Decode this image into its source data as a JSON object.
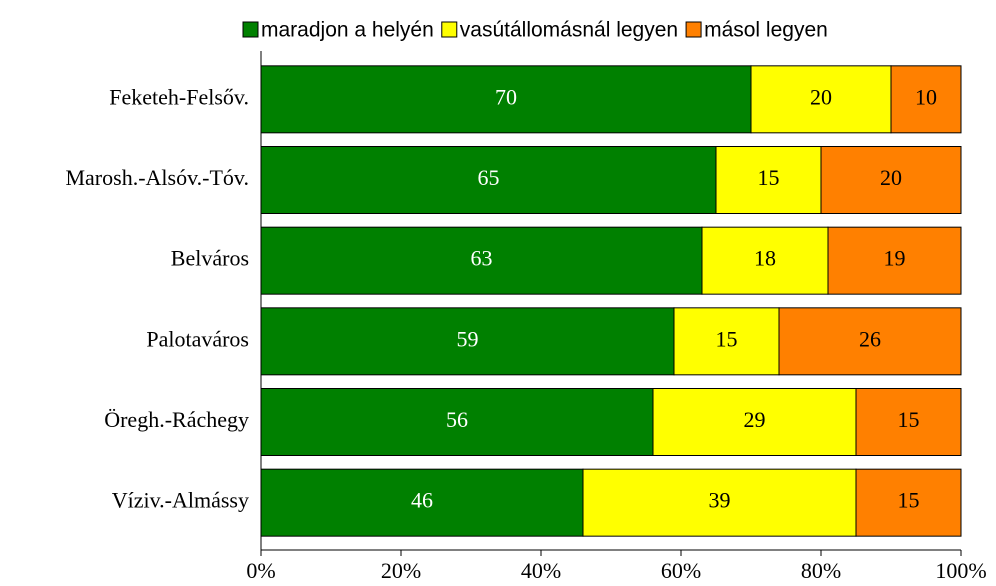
{
  "chart_data": {
    "type": "stacked_barh",
    "categories": [
      "Feketeh-Felsőv.",
      "Marosh.-Alsóv.-Tóv.",
      "Belváros",
      "Palotaváros",
      "Öregh.-Ráchegy",
      "Víziv.-Almássy"
    ],
    "series": [
      {
        "name": "maradjon a helyén",
        "color": "#008000",
        "values": [
          70,
          65,
          63,
          59,
          56,
          46
        ]
      },
      {
        "name": "vasútállomásnál legyen",
        "color": "#ffff00",
        "values": [
          20,
          15,
          18,
          15,
          29,
          39
        ]
      },
      {
        "name": "másol legyen",
        "color": "#ff8000",
        "values": [
          10,
          20,
          19,
          26,
          15,
          15
        ]
      }
    ],
    "xlim": [
      0,
      100
    ],
    "xticks": [
      {
        "value": 0,
        "label": "0%"
      },
      {
        "value": 20,
        "label": "20%"
      },
      {
        "value": 40,
        "label": "40%"
      },
      {
        "value": 60,
        "label": "60%"
      },
      {
        "value": 80,
        "label": "80%"
      },
      {
        "value": 100,
        "label": "100%"
      }
    ],
    "legend": "top"
  }
}
